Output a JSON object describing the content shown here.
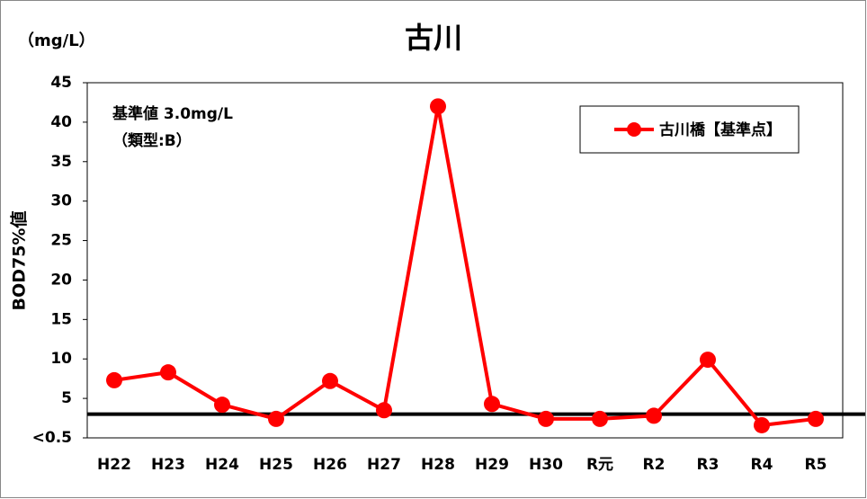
{
  "chart_data": {
    "type": "line",
    "title": "古川",
    "unit_label": "（mg/L）",
    "y_label": "BOD75%値",
    "annotations": [
      "基準値 3.0mg/L",
      "（類型:B）"
    ],
    "categories": [
      "H22",
      "H23",
      "H24",
      "H25",
      "H26",
      "H27",
      "H28",
      "H29",
      "H30",
      "R元",
      "R2",
      "R3",
      "R4",
      "R5"
    ],
    "series": [
      {
        "name": "古川橋【基準点】",
        "color": "#ff0000",
        "values": [
          7.3,
          8.3,
          4.2,
          2.4,
          7.2,
          3.5,
          42,
          4.3,
          2.4,
          2.4,
          2.8,
          9.9,
          1.6,
          2.4
        ]
      }
    ],
    "reference_value": 3.0,
    "reference_color": "#000000",
    "ylim": [
      0,
      45
    ],
    "yticks": [
      {
        "value": 0,
        "label": "<0.5"
      },
      5,
      10,
      15,
      20,
      25,
      30,
      35,
      40,
      45
    ],
    "grid": false,
    "legend": "upper right"
  }
}
